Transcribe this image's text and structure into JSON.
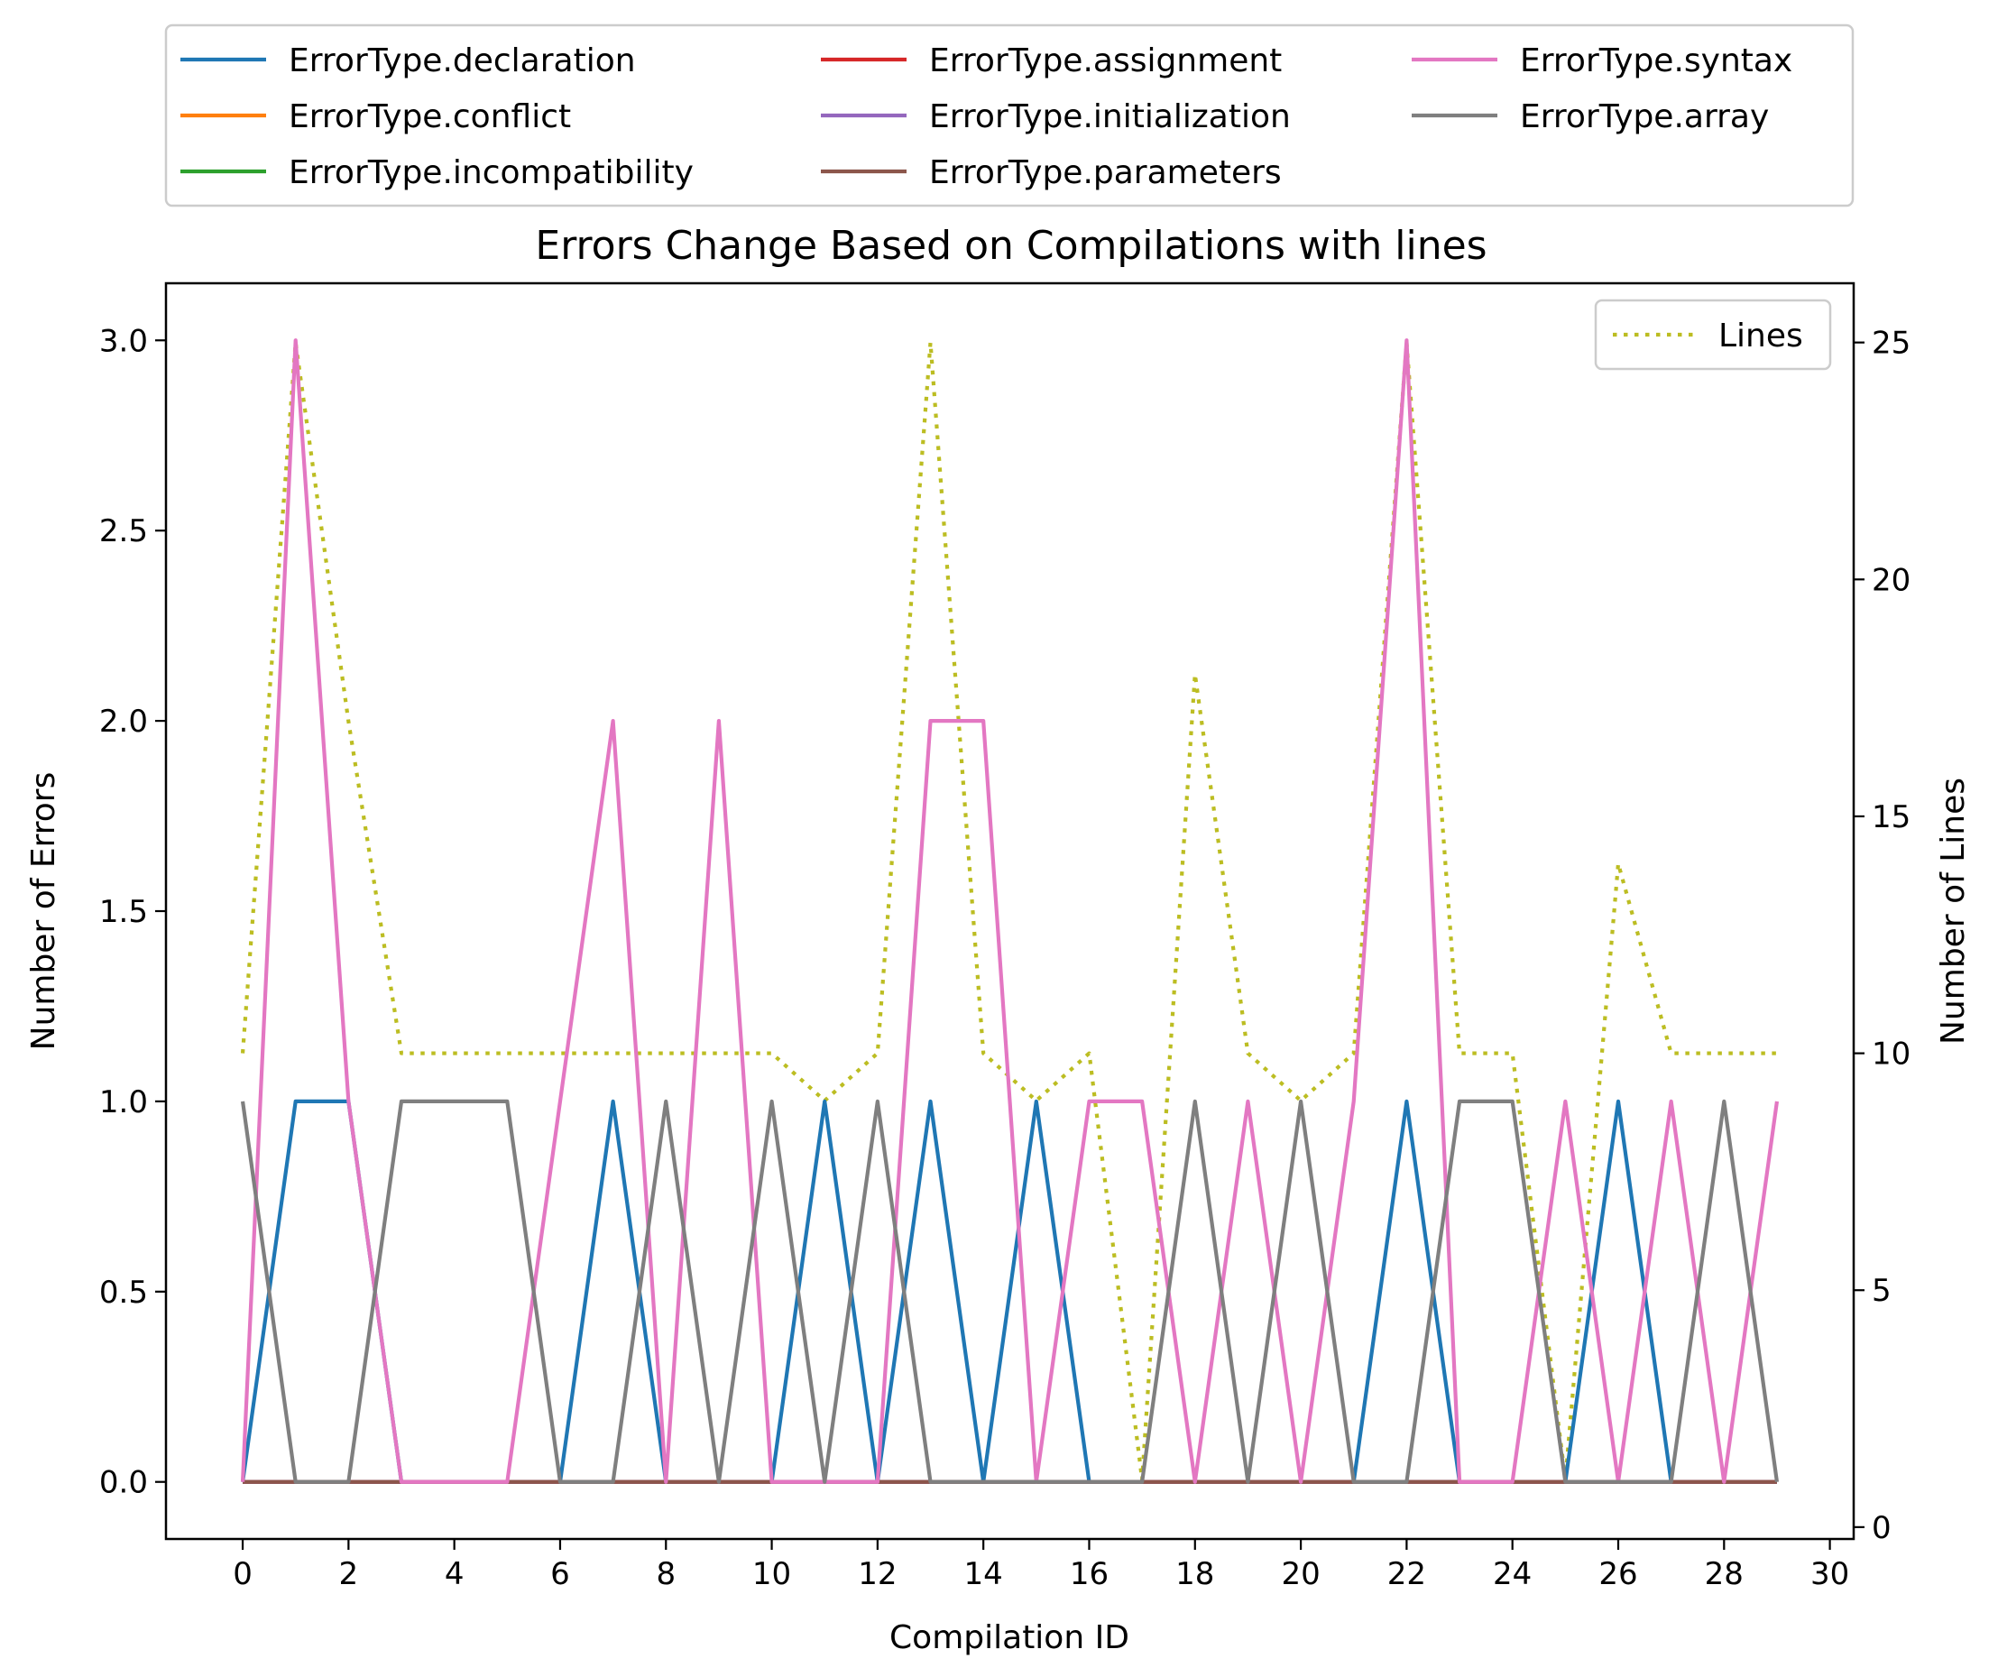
{
  "chart_data": {
    "type": "line",
    "title": "Errors Change Based on Compilations with lines",
    "xlabel": "Compilation ID",
    "ylabel": "Number of Errors",
    "y2label": "Number of Lines",
    "xlim": [
      -1.45,
      30.45
    ],
    "ylim": [
      -0.15,
      3.15
    ],
    "y2lim": [
      -0.25,
      26.25
    ],
    "xticks": [
      0,
      2,
      4,
      6,
      8,
      10,
      12,
      14,
      16,
      18,
      20,
      22,
      24,
      26,
      28,
      30
    ],
    "yticks": [
      0.0,
      0.5,
      1.0,
      1.5,
      2.0,
      2.5,
      3.0
    ],
    "y2ticks": [
      0,
      5,
      10,
      15,
      20,
      25
    ],
    "grid": false,
    "legend_placement": "top (above plot), 3 columns",
    "x": [
      0,
      1,
      2,
      3,
      4,
      5,
      6,
      7,
      8,
      9,
      10,
      11,
      12,
      13,
      14,
      15,
      16,
      17,
      18,
      19,
      20,
      21,
      22,
      23,
      24,
      25,
      26,
      27,
      28,
      29
    ],
    "series": [
      {
        "name": "ErrorType.declaration",
        "color": "#1f77b4",
        "values": [
          0,
          1,
          1,
          0,
          0,
          0,
          0,
          1,
          0,
          0,
          0,
          1,
          0,
          1,
          0,
          1,
          0,
          0,
          0,
          0,
          0,
          0,
          1,
          0,
          0,
          0,
          1,
          0,
          0,
          0
        ]
      },
      {
        "name": "ErrorType.conflict",
        "color": "#ff7f0e",
        "values": [
          0,
          0,
          0,
          0,
          0,
          0,
          0,
          0,
          0,
          0,
          0,
          0,
          0,
          0,
          0,
          0,
          0,
          0,
          0,
          0,
          0,
          0,
          0,
          0,
          0,
          0,
          0,
          0,
          0,
          0
        ]
      },
      {
        "name": "ErrorType.incompatibility",
        "color": "#2ca02c",
        "values": [
          0,
          0,
          0,
          0,
          0,
          0,
          0,
          0,
          0,
          0,
          0,
          0,
          0,
          0,
          0,
          0,
          0,
          0,
          0,
          0,
          0,
          0,
          0,
          0,
          0,
          0,
          0,
          0,
          0,
          0
        ]
      },
      {
        "name": "ErrorType.assignment",
        "color": "#d62728",
        "values": [
          0,
          0,
          0,
          0,
          0,
          0,
          0,
          0,
          0,
          0,
          0,
          0,
          0,
          0,
          0,
          0,
          0,
          0,
          0,
          0,
          0,
          0,
          0,
          0,
          0,
          0,
          0,
          0,
          0,
          0
        ]
      },
      {
        "name": "ErrorType.initialization",
        "color": "#9467bd",
        "values": [
          0,
          0,
          0,
          0,
          0,
          0,
          0,
          0,
          0,
          0,
          0,
          0,
          0,
          0,
          0,
          0,
          0,
          0,
          0,
          0,
          0,
          0,
          0,
          0,
          0,
          0,
          0,
          0,
          0,
          0
        ]
      },
      {
        "name": "ErrorType.parameters",
        "color": "#8c564b",
        "values": [
          0,
          0,
          0,
          0,
          0,
          0,
          0,
          0,
          0,
          0,
          0,
          0,
          0,
          0,
          0,
          0,
          0,
          0,
          0,
          0,
          0,
          0,
          0,
          0,
          0,
          0,
          0,
          0,
          0,
          0
        ]
      },
      {
        "name": "ErrorType.syntax",
        "color": "#e377c2",
        "values": [
          0,
          3,
          1,
          0,
          0,
          0,
          1,
          2,
          0,
          2,
          0,
          0,
          0,
          2,
          2,
          0,
          1,
          1,
          0,
          1,
          0,
          1,
          3,
          0,
          0,
          1,
          0,
          1,
          0,
          1
        ]
      },
      {
        "name": "ErrorType.array",
        "color": "#7f7f7f",
        "values": [
          1,
          0,
          0,
          1,
          1,
          1,
          0,
          0,
          1,
          0,
          1,
          0,
          1,
          0,
          0,
          0,
          0,
          0,
          1,
          0,
          1,
          0,
          0,
          1,
          1,
          0,
          0,
          0,
          1,
          0
        ]
      }
    ],
    "secondary_series": {
      "name": "Lines",
      "color": "#bcbd22",
      "style": "dotted",
      "values": [
        10,
        25,
        17,
        10,
        10,
        10,
        10,
        10,
        10,
        10,
        10,
        9,
        10,
        25,
        10,
        9,
        10,
        1,
        18,
        10,
        9,
        10,
        25,
        10,
        10,
        1,
        14,
        10,
        10,
        10
      ]
    }
  }
}
